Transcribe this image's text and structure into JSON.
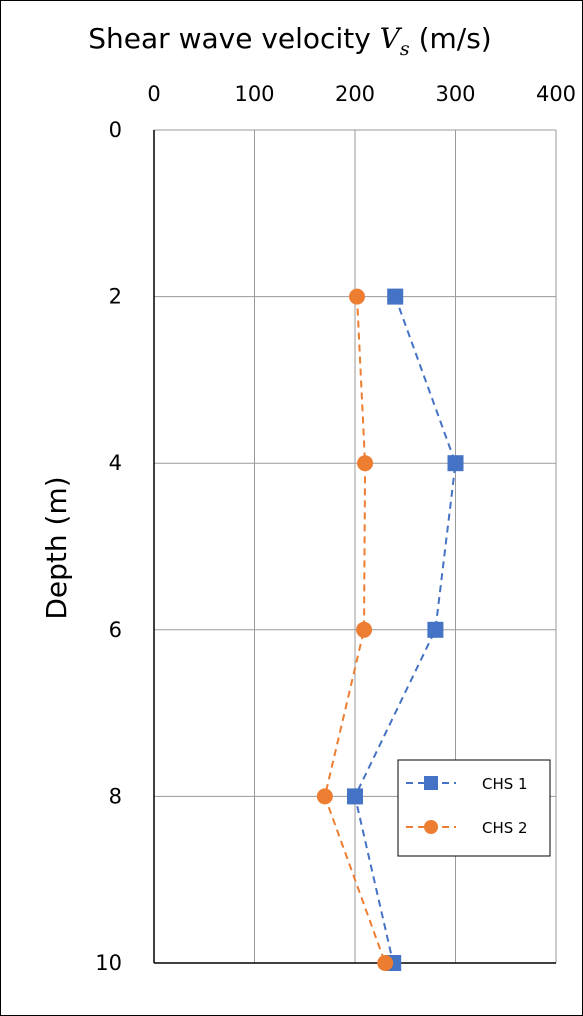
{
  "chart_data": {
    "type": "line",
    "title": "",
    "xlabel": {
      "main": "Shear wave velocity ",
      "symbol": "V",
      "subscript": "s",
      "unit": " (m/s)"
    },
    "ylabel": "Depth (m)",
    "xlim": [
      0,
      400
    ],
    "ylim": [
      0,
      10
    ],
    "y_inverted": true,
    "x_axis_position": "top",
    "x_ticks": [
      "0",
      "100",
      "200",
      "300",
      "400"
    ],
    "y_ticks": [
      "0",
      "2",
      "4",
      "6",
      "8",
      "10"
    ],
    "grid": true,
    "legend_position": "lower-right",
    "series": [
      {
        "name": "CHS 1",
        "color": "#4472C4",
        "marker": "square",
        "line_style": "dashed",
        "points": [
          {
            "x": 240,
            "y": 2
          },
          {
            "x": 300,
            "y": 4
          },
          {
            "x": 280,
            "y": 6
          },
          {
            "x": 200,
            "y": 8
          },
          {
            "x": 238,
            "y": 10
          }
        ]
      },
      {
        "name": "CHS 2",
        "color": "#ED7D31",
        "marker": "circle",
        "line_style": "dashed",
        "points": [
          {
            "x": 202,
            "y": 2
          },
          {
            "x": 210,
            "y": 4
          },
          {
            "x": 209,
            "y": 6
          },
          {
            "x": 170,
            "y": 8
          },
          {
            "x": 230,
            "y": 10
          }
        ]
      }
    ]
  }
}
